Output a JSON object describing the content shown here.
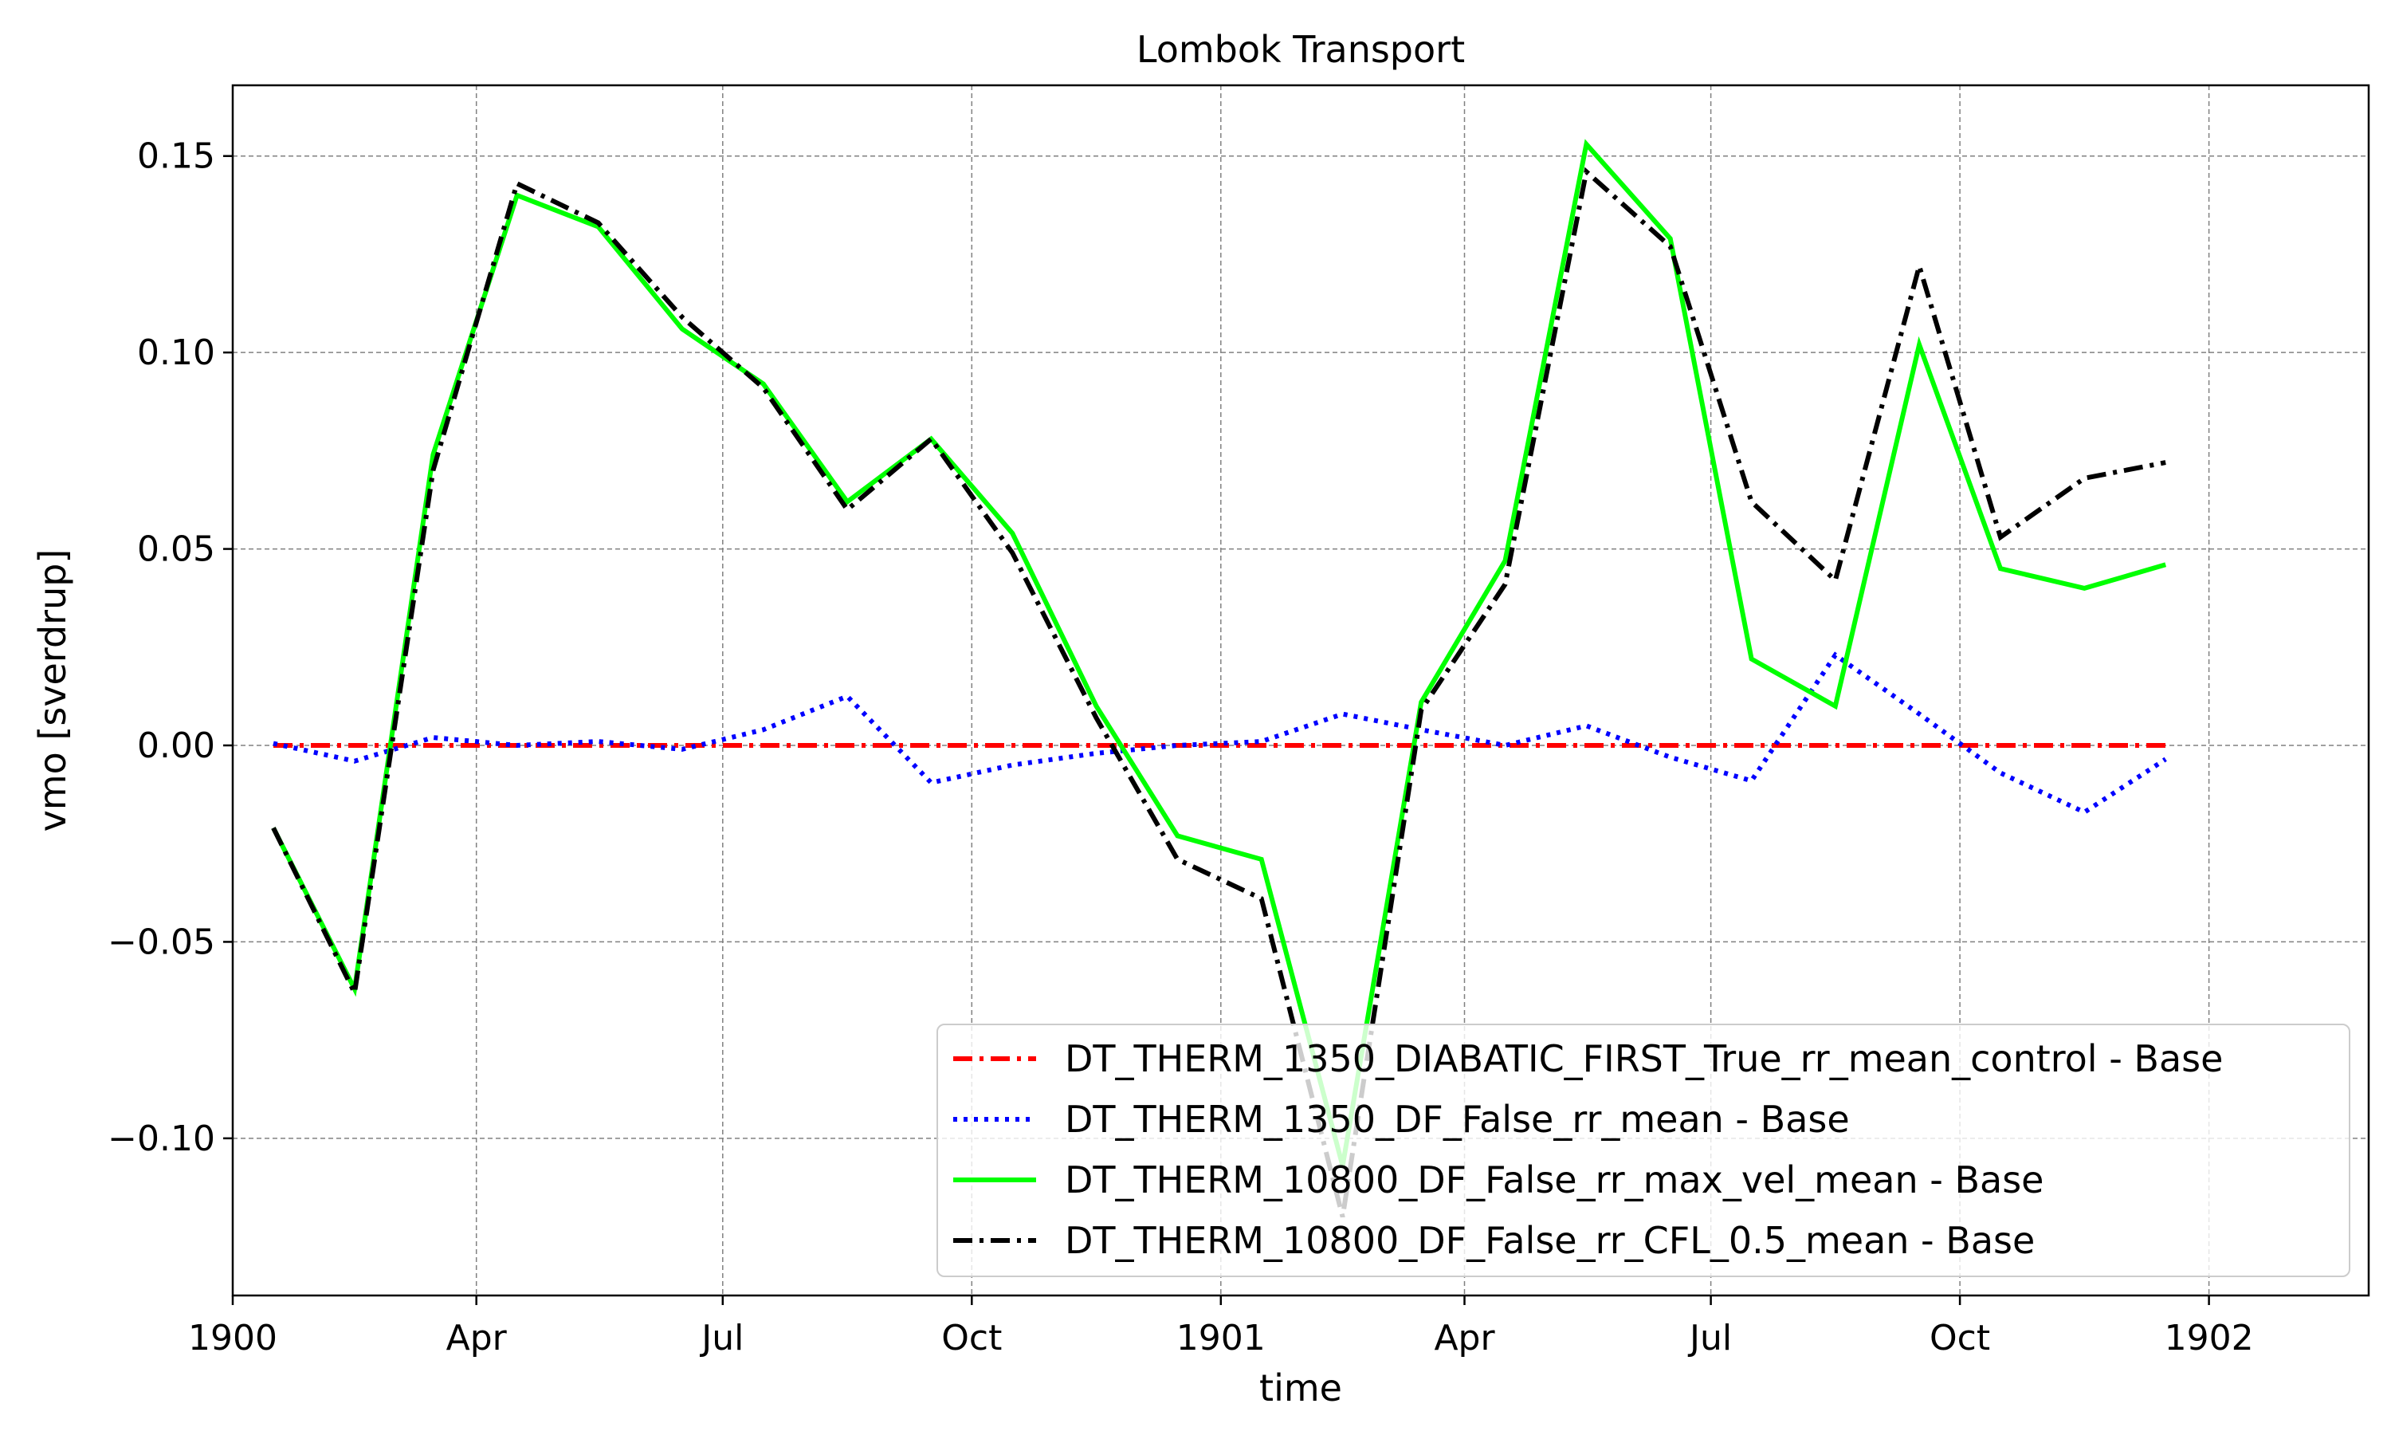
{
  "chart_data": {
    "type": "line",
    "title": "Lombok Transport",
    "xlabel": "time",
    "ylabel": "vmo [sverdrup]",
    "x_axis_kind": "date",
    "xlim": [
      "1900-01-01",
      "1902-03-01"
    ],
    "ylim": [
      -0.14,
      0.168
    ],
    "grid": true,
    "legend_position": "lower-right",
    "x_ticks": [
      {
        "date": "1900-01-01",
        "label": "1900"
      },
      {
        "date": "1900-04-01",
        "label": "Apr"
      },
      {
        "date": "1900-07-01",
        "label": "Jul"
      },
      {
        "date": "1900-10-01",
        "label": "Oct"
      },
      {
        "date": "1901-01-01",
        "label": "1901"
      },
      {
        "date": "1901-04-01",
        "label": "Apr"
      },
      {
        "date": "1901-07-01",
        "label": "Jul"
      },
      {
        "date": "1901-10-01",
        "label": "Oct"
      },
      {
        "date": "1902-01-01",
        "label": "1902"
      }
    ],
    "y_ticks": [
      {
        "value": 0.15,
        "label": "0.15"
      },
      {
        "value": 0.1,
        "label": "0.10"
      },
      {
        "value": 0.05,
        "label": "0.05"
      },
      {
        "value": 0.0,
        "label": "0.00"
      },
      {
        "value": -0.05,
        "label": "−0.05"
      },
      {
        "value": -0.1,
        "label": "−0.10"
      }
    ],
    "x": [
      "1900-01-16",
      "1900-02-15",
      "1900-03-16",
      "1900-04-16",
      "1900-05-16",
      "1900-06-16",
      "1900-07-16",
      "1900-08-16",
      "1900-09-16",
      "1900-10-16",
      "1900-11-16",
      "1900-12-16",
      "1901-01-16",
      "1901-02-15",
      "1901-03-16",
      "1901-04-16",
      "1901-05-16",
      "1901-06-16",
      "1901-07-16",
      "1901-08-16",
      "1901-09-16",
      "1901-10-16",
      "1901-11-16",
      "1901-12-16"
    ],
    "series": [
      {
        "name": "DT_THERM_1350_DIABATIC_FIRST_True_rr_mean_control - Base",
        "color": "#ff0000",
        "style": "dash-dot",
        "values": [
          0,
          0,
          0,
          0,
          0,
          0,
          0,
          0,
          0,
          0,
          0,
          0,
          0,
          0,
          0,
          0,
          0,
          0,
          0,
          0,
          0,
          0,
          0,
          0
        ]
      },
      {
        "name": "DT_THERM_1350_DF_False_rr_mean - Base",
        "color": "#0000ff",
        "style": "dotted",
        "values": [
          0.0005,
          -0.004,
          0.002,
          0.0,
          0.001,
          -0.001,
          0.004,
          0.0125,
          -0.0095,
          -0.005,
          -0.002,
          0.0,
          0.001,
          0.008,
          0.004,
          0.0,
          0.005,
          -0.003,
          -0.009,
          0.023,
          0.008,
          -0.007,
          -0.017,
          -0.0035
        ]
      },
      {
        "name": "DT_THERM_10800_DF_False_rr_max_vel_mean - Base",
        "color": "#00ff00",
        "style": "solid",
        "values": [
          -0.021,
          -0.062,
          0.074,
          0.14,
          0.132,
          0.106,
          0.092,
          0.062,
          0.078,
          0.054,
          0.01,
          -0.023,
          -0.029,
          -0.107,
          0.011,
          0.047,
          0.153,
          0.129,
          0.022,
          0.01,
          0.102,
          0.045,
          0.04,
          0.046
        ]
      },
      {
        "name": "DT_THERM_10800_DF_False_rr_CFL_0.5_mean - Base",
        "color": "#000000",
        "style": "dash-dot",
        "values": [
          -0.021,
          -0.063,
          0.07,
          0.143,
          0.133,
          0.109,
          0.091,
          0.06,
          0.078,
          0.049,
          0.007,
          -0.029,
          -0.039,
          -0.12,
          0.009,
          0.041,
          0.146,
          0.127,
          0.062,
          0.042,
          0.122,
          0.053,
          0.068,
          0.072
        ]
      }
    ]
  }
}
